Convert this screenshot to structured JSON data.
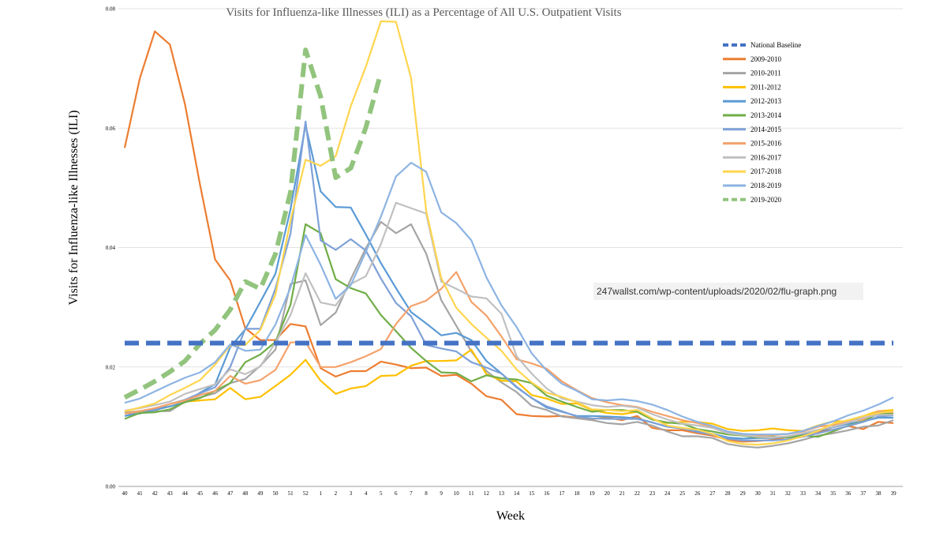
{
  "source_label": "247wallst.com/wp-content/uploads/2020/02/flu-graph.png",
  "chart_data": {
    "type": "line",
    "title": "Visits for Influenza-like Illnesses (ILI) as a Percentage of All U.S. Outpatient Visits",
    "xlabel": "Week",
    "ylabel": "Visits for Influenza-like Illnesses (ILI)",
    "ylim": [
      0,
      0.08
    ],
    "yticks": [
      "0.00",
      "0.02",
      "0.04",
      "0.06",
      "0.08"
    ],
    "grid": "horizontal",
    "legend_position": "top-right",
    "categories": [
      "40",
      "41",
      "42",
      "43",
      "44",
      "45",
      "46",
      "47",
      "48",
      "49",
      "50",
      "51",
      "52",
      "1",
      "2",
      "3",
      "4",
      "5",
      "6",
      "7",
      "8",
      "9",
      "10",
      "11",
      "12",
      "13",
      "14",
      "15",
      "16",
      "17",
      "18",
      "19",
      "20",
      "21",
      "22",
      "23",
      "24",
      "25",
      "26",
      "27",
      "28",
      "29",
      "30",
      "31",
      "32",
      "33",
      "34",
      "35",
      "36",
      "37",
      "38",
      "39"
    ],
    "series": [
      {
        "name": "National Baseline",
        "color": "#4472C4",
        "style": "dashed-thick",
        "values": [
          0.024,
          0.024,
          0.024,
          0.024,
          0.024,
          0.024,
          0.024,
          0.024,
          0.024,
          0.024,
          0.024,
          0.024,
          0.024,
          0.024,
          0.024,
          0.024,
          0.024,
          0.024,
          0.024,
          0.024,
          0.024,
          0.024,
          0.024,
          0.024,
          0.024,
          0.024,
          0.024,
          0.024,
          0.024,
          0.024,
          0.024,
          0.024,
          0.024,
          0.024,
          0.024,
          0.024,
          0.024,
          0.024,
          0.024,
          0.024,
          0.024,
          0.024,
          0.024,
          0.024,
          0.024,
          0.024,
          0.024,
          0.024,
          0.024,
          0.024,
          0.024,
          0.024
        ]
      },
      {
        "name": "2009-2010",
        "color": "#ED7D31",
        "style": "solid",
        "values": [
          0.0567,
          0.0683,
          0.0762,
          0.074,
          0.064,
          0.0505,
          0.038,
          0.0345,
          0.0265,
          0.0245,
          0.0245,
          0.0272,
          0.0268,
          0.0198,
          0.0184,
          0.0193,
          0.0193,
          0.0209,
          0.0204,
          0.0198,
          0.0199,
          0.0185,
          0.0187,
          0.0172,
          0.0151,
          0.0145,
          0.0121,
          0.0118,
          0.0117,
          0.0118,
          0.0115,
          0.0113,
          0.0115,
          0.0111,
          0.0118,
          0.0098,
          0.0094,
          0.0094,
          0.0089,
          0.0085,
          0.0078,
          0.0075,
          0.0076,
          0.0078,
          0.0083,
          0.0086,
          0.0092,
          0.0095,
          0.0101,
          0.0096,
          0.0108,
          0.0106
        ]
      },
      {
        "name": "2010-2011",
        "color": "#A5A5A5",
        "style": "solid",
        "values": [
          0.0118,
          0.0126,
          0.0126,
          0.0126,
          0.0142,
          0.0149,
          0.0156,
          0.0173,
          0.018,
          0.0202,
          0.0229,
          0.0339,
          0.0345,
          0.027,
          0.0291,
          0.0347,
          0.0399,
          0.0443,
          0.0424,
          0.0439,
          0.039,
          0.0312,
          0.0269,
          0.0226,
          0.0193,
          0.0174,
          0.0158,
          0.0135,
          0.0128,
          0.0117,
          0.0114,
          0.0111,
          0.0106,
          0.0104,
          0.0108,
          0.0102,
          0.0092,
          0.0084,
          0.0084,
          0.0081,
          0.0071,
          0.0067,
          0.0065,
          0.0068,
          0.0072,
          0.0078,
          0.0085,
          0.0089,
          0.0094,
          0.01,
          0.0102,
          0.0111
        ]
      },
      {
        "name": "2011-2012",
        "color": "#FFC000",
        "style": "solid",
        "values": [
          0.0124,
          0.0126,
          0.0128,
          0.0134,
          0.0142,
          0.0144,
          0.0146,
          0.0165,
          0.0146,
          0.015,
          0.0168,
          0.0187,
          0.0212,
          0.0177,
          0.0155,
          0.0164,
          0.0168,
          0.0185,
          0.0186,
          0.0202,
          0.021,
          0.021,
          0.0211,
          0.0229,
          0.0188,
          0.0177,
          0.0176,
          0.0153,
          0.0147,
          0.0138,
          0.0139,
          0.0128,
          0.0123,
          0.0121,
          0.0125,
          0.0112,
          0.0106,
          0.0108,
          0.0108,
          0.0105,
          0.0096,
          0.0093,
          0.0094,
          0.0097,
          0.0094,
          0.0093,
          0.0102,
          0.0109,
          0.0109,
          0.0118,
          0.0126,
          0.0128
        ]
      },
      {
        "name": "2012-2013",
        "color": "#5B9BD5",
        "style": "solid",
        "values": [
          0.0118,
          0.0122,
          0.0128,
          0.0134,
          0.0141,
          0.0157,
          0.0171,
          0.0233,
          0.0263,
          0.0309,
          0.0356,
          0.0464,
          0.0605,
          0.0494,
          0.0468,
          0.0467,
          0.0422,
          0.0374,
          0.0332,
          0.0292,
          0.0273,
          0.0253,
          0.0257,
          0.0245,
          0.021,
          0.0189,
          0.0166,
          0.0148,
          0.0132,
          0.0125,
          0.0118,
          0.0118,
          0.0117,
          0.0116,
          0.0114,
          0.0107,
          0.01,
          0.0097,
          0.0092,
          0.0088,
          0.0082,
          0.008,
          0.0081,
          0.0081,
          0.0083,
          0.0088,
          0.0093,
          0.0099,
          0.0105,
          0.0109,
          0.0115,
          0.0115
        ]
      },
      {
        "name": "2013-2014",
        "color": "#70AD47",
        "style": "solid",
        "values": [
          0.0113,
          0.0123,
          0.0124,
          0.0129,
          0.0141,
          0.0148,
          0.016,
          0.0173,
          0.0208,
          0.0221,
          0.0242,
          0.0304,
          0.0439,
          0.0424,
          0.0347,
          0.0332,
          0.0323,
          0.0287,
          0.026,
          0.0232,
          0.021,
          0.0191,
          0.019,
          0.0176,
          0.0186,
          0.0181,
          0.0179,
          0.0173,
          0.0152,
          0.0142,
          0.0133,
          0.0125,
          0.0128,
          0.0128,
          0.0125,
          0.0112,
          0.0107,
          0.0105,
          0.0096,
          0.0092,
          0.0087,
          0.0085,
          0.0082,
          0.0083,
          0.0082,
          0.0085,
          0.0083,
          0.0092,
          0.0102,
          0.0109,
          0.0122,
          0.0122
        ]
      },
      {
        "name": "2014-2015",
        "color": "#7EA1D8",
        "style": "solid",
        "values": [
          0.0123,
          0.0126,
          0.0129,
          0.0138,
          0.0145,
          0.0156,
          0.0166,
          0.02,
          0.0264,
          0.0264,
          0.0331,
          0.0423,
          0.0611,
          0.0412,
          0.0396,
          0.0414,
          0.0395,
          0.0348,
          0.0307,
          0.0285,
          0.0237,
          0.0231,
          0.0226,
          0.0208,
          0.0199,
          0.0189,
          0.0167,
          0.0148,
          0.0134,
          0.0126,
          0.0117,
          0.0114,
          0.0113,
          0.0113,
          0.0113,
          0.0107,
          0.01,
          0.0097,
          0.0091,
          0.0087,
          0.008,
          0.0077,
          0.0077,
          0.0077,
          0.0079,
          0.0083,
          0.0089,
          0.0095,
          0.0101,
          0.0108,
          0.0117,
          0.0119
        ]
      },
      {
        "name": "2015-2016",
        "color": "#F4A26B",
        "style": "solid",
        "values": [
          0.0122,
          0.0126,
          0.0131,
          0.0138,
          0.0144,
          0.0153,
          0.016,
          0.0185,
          0.0172,
          0.0178,
          0.0195,
          0.0241,
          0.0242,
          0.02,
          0.02,
          0.0208,
          0.0218,
          0.023,
          0.0272,
          0.0302,
          0.0311,
          0.0331,
          0.0359,
          0.0309,
          0.0286,
          0.0251,
          0.0213,
          0.0206,
          0.0197,
          0.0176,
          0.0161,
          0.0148,
          0.0141,
          0.0136,
          0.0133,
          0.0125,
          0.0118,
          0.0111,
          0.0106,
          0.0099,
          0.009,
          0.0088,
          0.0085,
          0.0086,
          0.0088,
          0.0092,
          0.01,
          0.0103,
          0.0109,
          0.0112,
          0.0126,
          0.0124
        ]
      },
      {
        "name": "2016-2017",
        "color": "#C0C0C0",
        "style": "solid",
        "values": [
          0.0127,
          0.0131,
          0.0136,
          0.0142,
          0.0155,
          0.0163,
          0.0171,
          0.0196,
          0.0188,
          0.0201,
          0.0241,
          0.0287,
          0.0357,
          0.0308,
          0.0303,
          0.0339,
          0.0352,
          0.0406,
          0.0475,
          0.0466,
          0.0457,
          0.0343,
          0.0331,
          0.0318,
          0.0315,
          0.0289,
          0.0218,
          0.0189,
          0.0164,
          0.0147,
          0.0142,
          0.0136,
          0.0133,
          0.0135,
          0.0132,
          0.0121,
          0.0112,
          0.0105,
          0.0102,
          0.0098,
          0.0089,
          0.0086,
          0.0083,
          0.0082,
          0.0084,
          0.0089,
          0.0095,
          0.01,
          0.0107,
          0.0115,
          0.012,
          0.012
        ]
      },
      {
        "name": "2017-2018",
        "color": "#FFD54F",
        "style": "solid",
        "values": [
          0.0126,
          0.0132,
          0.0139,
          0.0153,
          0.0165,
          0.0178,
          0.0204,
          0.0236,
          0.0237,
          0.0262,
          0.0321,
          0.0445,
          0.0547,
          0.0537,
          0.0553,
          0.0637,
          0.0703,
          0.0779,
          0.0778,
          0.0684,
          0.0462,
          0.0349,
          0.0299,
          0.0272,
          0.0249,
          0.0227,
          0.0196,
          0.0174,
          0.0157,
          0.015,
          0.0141,
          0.0129,
          0.0128,
          0.0126,
          0.0128,
          0.0114,
          0.0102,
          0.0098,
          0.0095,
          0.0088,
          0.0076,
          0.0071,
          0.007,
          0.0072,
          0.0077,
          0.0084,
          0.0093,
          0.0105,
          0.0111,
          0.0118,
          0.0123,
          0.0126
        ]
      },
      {
        "name": "2018-2019",
        "color": "#8DB4E2",
        "style": "solid",
        "values": [
          0.014,
          0.0147,
          0.0159,
          0.0171,
          0.0182,
          0.0191,
          0.0208,
          0.0238,
          0.0227,
          0.0229,
          0.0271,
          0.0333,
          0.0421,
          0.0371,
          0.0314,
          0.0337,
          0.0393,
          0.0452,
          0.0519,
          0.0542,
          0.0527,
          0.0459,
          0.0441,
          0.0412,
          0.035,
          0.0303,
          0.0267,
          0.0223,
          0.0194,
          0.0172,
          0.016,
          0.0146,
          0.0144,
          0.0146,
          0.0143,
          0.0137,
          0.0128,
          0.0117,
          0.0108,
          0.0101,
          0.0092,
          0.0088,
          0.0087,
          0.0087,
          0.0088,
          0.0093,
          0.0101,
          0.0109,
          0.0119,
          0.0127,
          0.0137,
          0.0149
        ]
      },
      {
        "name": "2019-2020",
        "color": "#92C47D",
        "style": "dashed-thick",
        "values": [
          0.0149,
          0.0162,
          0.0176,
          0.0192,
          0.021,
          0.0239,
          0.0262,
          0.0296,
          0.0343,
          0.0331,
          0.0389,
          0.0493,
          0.0731,
          0.0653,
          0.0517,
          0.0533,
          0.0601,
          0.0693,
          null,
          null,
          null,
          null,
          null,
          null,
          null,
          null,
          null,
          null,
          null,
          null,
          null,
          null,
          null,
          null,
          null,
          null,
          null,
          null,
          null,
          null,
          null,
          null,
          null,
          null,
          null,
          null,
          null,
          null,
          null,
          null,
          null,
          null
        ]
      }
    ]
  }
}
